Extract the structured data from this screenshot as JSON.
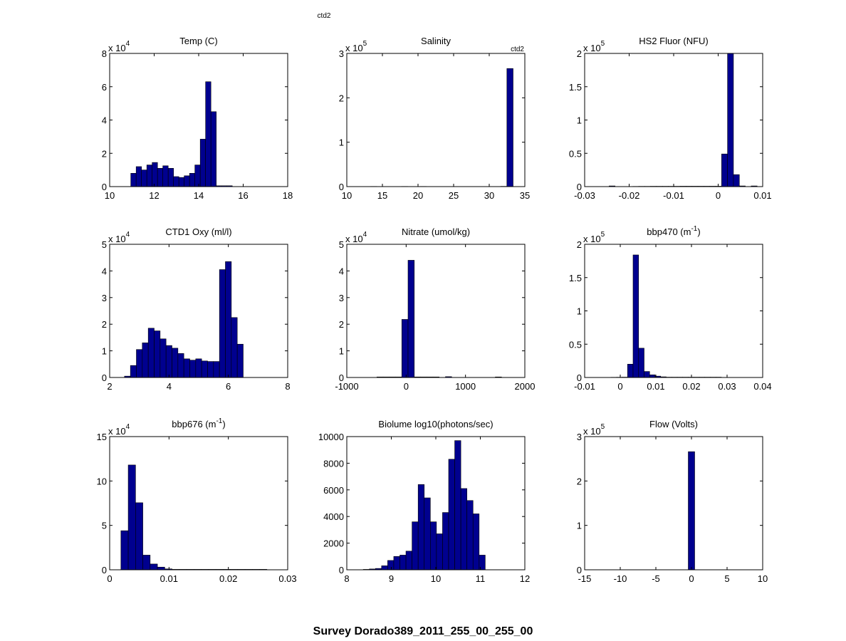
{
  "figure": {
    "top_label": "ctd2",
    "suptitle": "Survey Dorado389_2011_255_00_255_00",
    "bar_color": "#00008f"
  },
  "chart_data": [
    {
      "type": "bar",
      "title": "Temp (C)",
      "title_sup": "",
      "title_after": "",
      "corner_label": "",
      "exponent": "4",
      "xlim": [
        10,
        18
      ],
      "ylim": [
        0,
        8
      ],
      "xticks": [
        10,
        12,
        14,
        16,
        18
      ],
      "xtick_labels": [
        "10",
        "12",
        "14",
        "16",
        "18"
      ],
      "yticks": [
        0,
        2,
        4,
        6,
        8
      ],
      "ytick_labels": [
        "0",
        "2",
        "4",
        "6",
        "8"
      ],
      "bin_start": 10.95,
      "bin_width": 0.24,
      "values": [
        0.8,
        1.2,
        1.0,
        1.3,
        1.45,
        1.1,
        1.25,
        1.1,
        0.6,
        0.55,
        0.65,
        0.8,
        1.3,
        2.85,
        6.3,
        4.5,
        0.05,
        0.05,
        0.05,
        0,
        0,
        0,
        0,
        0,
        0
      ]
    },
    {
      "type": "bar",
      "title": "Salinity",
      "title_sup": "",
      "title_after": "",
      "corner_label": "ctd2",
      "exponent": "5",
      "xlim": [
        10,
        35
      ],
      "ylim": [
        0,
        3
      ],
      "xticks": [
        10,
        15,
        20,
        25,
        30,
        35
      ],
      "xtick_labels": [
        "10",
        "15",
        "20",
        "25",
        "30",
        "35"
      ],
      "yticks": [
        0,
        1,
        2,
        3
      ],
      "ytick_labels": [
        "0",
        "1",
        "2",
        "3"
      ],
      "bin_start": 11.6,
      "bin_width": 0.87,
      "values": [
        0,
        0.003,
        0.004,
        0,
        0,
        0.003,
        0.002,
        0.004,
        0.002,
        0.003,
        0.004,
        0.003,
        0.002,
        0.003,
        0,
        0,
        0.003,
        0.002,
        0.003,
        0.002,
        0.003,
        0.002,
        0.003,
        0.006,
        2.66
      ]
    },
    {
      "type": "bar",
      "title": "HS2 Fluor (NFU)",
      "title_sup": "",
      "title_after": "",
      "corner_label": "",
      "exponent": "5",
      "xlim": [
        -0.03,
        0.01
      ],
      "ylim": [
        0,
        2
      ],
      "xticks": [
        -0.03,
        -0.02,
        -0.01,
        0,
        0.01
      ],
      "xtick_labels": [
        "-0.03",
        "-0.02",
        "-0.01",
        "0",
        "0.01"
      ],
      "yticks": [
        0,
        0.5,
        1,
        1.5,
        2
      ],
      "ytick_labels": [
        "0",
        "0.5",
        "1",
        "1.5",
        "2"
      ],
      "bin_start": -0.0245,
      "bin_width": 0.00133,
      "values": [
        0.01,
        0,
        0,
        0,
        0.003,
        0.004,
        0.004,
        0.005,
        0.005,
        0.005,
        0.005,
        0.005,
        0.006,
        0.006,
        0.006,
        0.006,
        0.006,
        0.006,
        0.006,
        0.49,
        2.0,
        0.18,
        0.01,
        0,
        0.01
      ]
    },
    {
      "type": "bar",
      "title": "CTD1 Oxy (ml/l)",
      "title_sup": "",
      "title_after": "",
      "corner_label": "",
      "exponent": "4",
      "xlim": [
        2,
        8
      ],
      "ylim": [
        0,
        5
      ],
      "xticks": [
        2,
        4,
        6,
        8
      ],
      "xtick_labels": [
        "2",
        "4",
        "6",
        "8"
      ],
      "yticks": [
        0,
        1,
        2,
        3,
        4,
        5
      ],
      "ytick_labels": [
        "0",
        "1",
        "2",
        "3",
        "4",
        "5"
      ],
      "bin_start": 2.5,
      "bin_width": 0.2,
      "values": [
        0.05,
        0.45,
        1.05,
        1.3,
        1.85,
        1.75,
        1.45,
        1.2,
        1.1,
        0.9,
        0.7,
        0.65,
        0.7,
        0.62,
        0.6,
        0.6,
        4.05,
        4.35,
        2.25,
        1.25
      ]
    },
    {
      "type": "bar",
      "title": "Nitrate (umol/kg)",
      "title_sup": "",
      "title_after": "",
      "corner_label": "",
      "exponent": "4",
      "xlim": [
        -1000,
        2000
      ],
      "ylim": [
        0,
        5
      ],
      "xticks": [
        -1000,
        0,
        1000,
        2000
      ],
      "xtick_labels": [
        "-1000",
        "0",
        "1000",
        "2000"
      ],
      "yticks": [
        0,
        1,
        2,
        3,
        4,
        5
      ],
      "ytick_labels": [
        "0",
        "1",
        "2",
        "3",
        "4",
        "5"
      ],
      "bin_start": -493,
      "bin_width": 105,
      "values": [
        0.02,
        0.02,
        0.02,
        0.02,
        2.18,
        4.4,
        0.02,
        0.02,
        0.02,
        0.02,
        0,
        0.03,
        0,
        0,
        0,
        0,
        0,
        0,
        0,
        0.02
      ]
    },
    {
      "type": "bar",
      "title": "bbp470 (m",
      "title_sup": "-1",
      "title_after": ")",
      "corner_label": "",
      "exponent": "5",
      "xlim": [
        -0.01,
        0.04
      ],
      "ylim": [
        0,
        2
      ],
      "xticks": [
        -0.01,
        0,
        0.01,
        0.02,
        0.03,
        0.04
      ],
      "xtick_labels": [
        "-0.01",
        "0",
        "0.01",
        "0.02",
        "0.03",
        "0.04"
      ],
      "yticks": [
        0,
        0.5,
        1,
        1.5,
        2
      ],
      "ytick_labels": [
        "0",
        "0.5",
        "1",
        "1.5",
        "2"
      ],
      "bin_start": -0.0026,
      "bin_width": 0.00155,
      "values": [
        0.003,
        0.004,
        0.005,
        0.2,
        1.84,
        0.44,
        0.09,
        0.04,
        0.02,
        0.01,
        0.005,
        0.005,
        0.005,
        0.005,
        0.005,
        0.005,
        0.005,
        0.005,
        0.005,
        0.005
      ]
    },
    {
      "type": "bar",
      "title": "bbp676 (m",
      "title_sup": "-1",
      "title_after": ")",
      "corner_label": "",
      "exponent": "4",
      "xlim": [
        0,
        0.03
      ],
      "ylim": [
        0,
        15
      ],
      "xticks": [
        0,
        0.01,
        0.02,
        0.03
      ],
      "xtick_labels": [
        "0",
        "0.01",
        "0.02",
        "0.03"
      ],
      "yticks": [
        0,
        5,
        10,
        15
      ],
      "ytick_labels": [
        "0",
        "5",
        "10",
        "15"
      ],
      "bin_start": 0.0019,
      "bin_width": 0.00123,
      "values": [
        4.4,
        11.8,
        7.55,
        1.65,
        0.65,
        0.3,
        0.1,
        0.05,
        0.05,
        0.05,
        0.05,
        0.05,
        0.05,
        0.05,
        0.05,
        0.05,
        0.05,
        0.05,
        0.05,
        0.05
      ]
    },
    {
      "type": "bar",
      "title": "Biolume log10(photons/sec)",
      "title_sup": "",
      "title_after": "",
      "corner_label": "",
      "exponent": "",
      "xlim": [
        8,
        12
      ],
      "ylim": [
        0,
        10000
      ],
      "xticks": [
        8,
        9,
        10,
        11,
        12
      ],
      "xtick_labels": [
        "8",
        "9",
        "10",
        "11",
        "12"
      ],
      "yticks": [
        0,
        2000,
        4000,
        6000,
        8000,
        10000
      ],
      "ytick_labels": [
        "0",
        "2000",
        "4000",
        "6000",
        "8000",
        "10000"
      ],
      "bin_start": 8.37,
      "bin_width": 0.137,
      "values": [
        30,
        60,
        100,
        300,
        700,
        1000,
        1100,
        1400,
        3600,
        6400,
        5400,
        3600,
        2700,
        4300,
        8300,
        9700,
        6100,
        5200,
        4200,
        1100
      ]
    },
    {
      "type": "bar",
      "title": "Flow (Volts)",
      "title_sup": "",
      "title_after": "",
      "corner_label": "",
      "exponent": "5",
      "xlim": [
        -15,
        10
      ],
      "ylim": [
        0,
        3
      ],
      "xticks": [
        -15,
        -10,
        -5,
        0,
        5,
        10
      ],
      "xtick_labels": [
        "-15",
        "-10",
        "-5",
        "0",
        "5",
        "10"
      ],
      "yticks": [
        0,
        1,
        2,
        3
      ],
      "ytick_labels": [
        "0",
        "1",
        "2",
        "3"
      ],
      "bin_start": -0.45,
      "bin_width": 0.9,
      "values": [
        2.66
      ]
    }
  ]
}
